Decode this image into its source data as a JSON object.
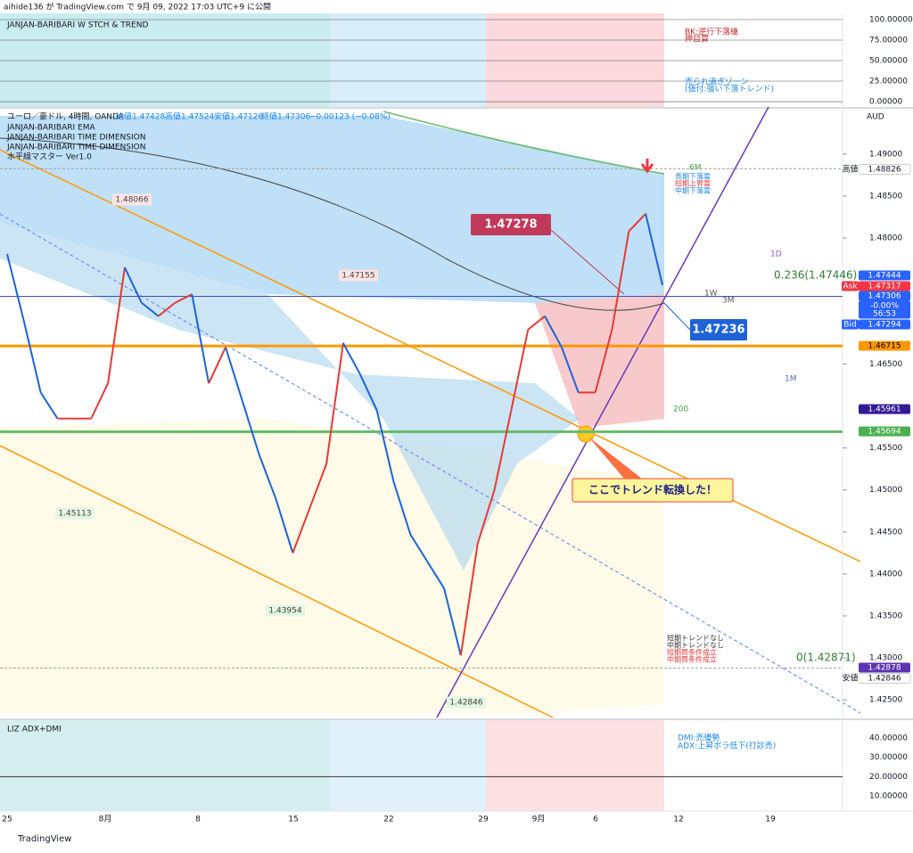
{
  "header": "aihide136 が TradingView.com で 9月 09, 2022 17:03 UTC+9 に公開",
  "stoch_pane": {
    "title": "JANJAN-BARIBARI W STCH & TREND",
    "notes": [
      "BK:逆行下落継",
      "押目買",
      "売られ過ぎゾーン",
      "(値付:強い下落トレンド)"
    ],
    "yticks": [
      "100.00000",
      "75.00000",
      "50.00000",
      "25.00000",
      "0.00000"
    ],
    "ylim": [
      -6.5,
      107.6
    ]
  },
  "main_pane": {
    "legend": [
      "ユーロ／豪ドル, 4時間, OANDA",
      "始値1.47428",
      "高値1.47524",
      "安値1.47126",
      "終値1.47306",
      "−0.00123 (−0.08%)"
    ],
    "indicators": [
      "JANJAN-BARIBARI EMA",
      "JANJAN-BARIBARI TIME DIMENSION",
      "JANJAN-BARIBARI TIME DIMENSION",
      "水平線マスター Ver1.0"
    ],
    "currency": "AUD",
    "ylim": [
      1.4229,
      1.4954
    ],
    "yticks": [
      "1.49000",
      "1.48500",
      "1.48000",
      "1.46500",
      "1.45500",
      "1.45000",
      "1.44500",
      "1.44000",
      "1.43500",
      "1.43000",
      "1.42500"
    ],
    "price_labels": [
      {
        "tag": "高値",
        "text": "1.48826",
        "bg": "#ffffff",
        "fg": "#131722",
        "line": "#9e9e9e"
      },
      {
        "text": "1.47444",
        "bg": "#2962ff",
        "fg": "#ffffff"
      },
      {
        "tag": "Ask",
        "text": "1.47317",
        "bg": "#f23645",
        "fg": "#ffffff"
      },
      {
        "text": "1.47306",
        "bg": "#2962ff",
        "fg": "#ffffff",
        "line": "#3f51b5"
      },
      {
        "text": "-0.00%",
        "bg": "#2962ff",
        "fg": "#ffffff"
      },
      {
        "text": "56:53",
        "bg": "#2962ff",
        "fg": "#ffffff"
      },
      {
        "tag": "Bid",
        "text": "1.47294",
        "bg": "#2962ff",
        "fg": "#ffffff"
      },
      {
        "text": "1.46715",
        "bg": "#ff9800",
        "fg": "#000000",
        "line": "#ff9800"
      },
      {
        "text": "1.45961",
        "bg": "#311b92",
        "fg": "#ffffff"
      },
      {
        "text": "1.45694",
        "bg": "#4caf50",
        "fg": "#ffffff",
        "line": "#66bb6a"
      },
      {
        "text": "1.42878",
        "bg": "#5e35b1",
        "fg": "#ffffff",
        "line": "#9e9e9e"
      },
      {
        "tag": "安値",
        "text": "1.42846",
        "bg": "#ffffff",
        "fg": "#131722"
      }
    ],
    "level_tags": [
      "1.48066",
      "1.47155",
      "1.45113",
      "1.43954",
      "1.42846"
    ],
    "callouts": [
      "1.47278",
      "1.47236",
      "ここでトレンド転換した！"
    ],
    "fib": [
      "0.236(1.47446)",
      "0(1.42871)"
    ],
    "period_tags": [
      "6M",
      "1D",
      "1W",
      "3M",
      "1M",
      "200"
    ],
    "cloud_notes": [
      "長期下落雲",
      "短期上昇雲",
      "中期下落雲"
    ],
    "trend_notes": [
      "短期トレンドなし",
      "中期トレンドなし",
      "短期買条件成立",
      "中期買条件成立"
    ],
    "price_path": [
      1.4781,
      1.4701,
      1.4616,
      1.4585,
      1.4585,
      1.4585,
      1.4627,
      1.4765,
      1.4723,
      1.4707,
      1.4723,
      1.4733,
      1.4627,
      1.467,
      1.4606,
      1.4542,
      1.4489,
      1.4425,
      1.4478,
      1.4531,
      1.4675,
      1.4638,
      1.4595,
      1.451,
      1.4447,
      1.4415,
      1.4383,
      1.4303,
      1.4436,
      1.45,
      1.4595,
      1.4691,
      1.4707,
      1.467,
      1.4616,
      1.4616,
      1.4691,
      1.4808,
      1.4829,
      1.4744
    ]
  },
  "adx_pane": {
    "title": "LIZ ADX+DMI",
    "notes": [
      "DMI:売優勢",
      "ADX:上昇ボラ低下(打診売)"
    ],
    "yticks": [
      "40.00000",
      "30.00000",
      "20.00000",
      "10.00000"
    ],
    "ylim": [
      2.2,
      49.2
    ]
  },
  "x_axis": [
    "25",
    "8月",
    "8",
    "15",
    "22",
    "29",
    "9月",
    "6",
    "12",
    "19"
  ],
  "footer": "TradingView"
}
